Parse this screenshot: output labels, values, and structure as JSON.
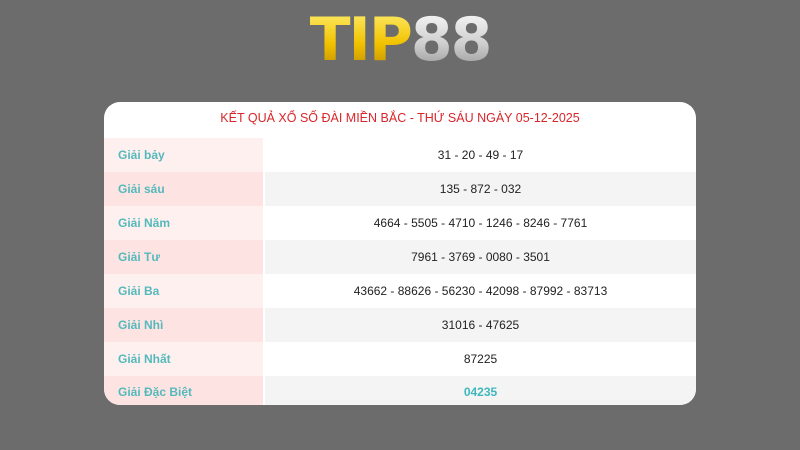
{
  "logo": {
    "text_part1": "TIP",
    "text_part2": "88"
  },
  "results": {
    "title": "KẾT QUẢ XỔ SỐ ĐÀI MIỀN BẮC - THỨ SÁU NGÀY 05-12-2025",
    "rows": [
      {
        "label": "Giải bảy",
        "value": "31 - 20 - 49 - 17"
      },
      {
        "label": "Giải sáu",
        "value": "135 - 872 - 032"
      },
      {
        "label": "Giải Năm",
        "value": "4664 - 5505 - 4710 - 1246 - 8246 - 7761"
      },
      {
        "label": "Giải Tư",
        "value": "7961 - 3769 - 0080 - 3501"
      },
      {
        "label": "Giải Ba",
        "value": "43662 - 88626 - 56230 - 42098 - 87992 - 83713"
      },
      {
        "label": "Giải Nhì",
        "value": "31016 - 47625"
      },
      {
        "label": "Giải Nhất",
        "value": "87225"
      },
      {
        "label": "Giải Đặc Biệt",
        "value": "04235"
      }
    ]
  },
  "colors": {
    "background": "#6c6c6c",
    "title": "#d8262b",
    "label": "#55b9bc",
    "special": "#3fb8bd"
  }
}
